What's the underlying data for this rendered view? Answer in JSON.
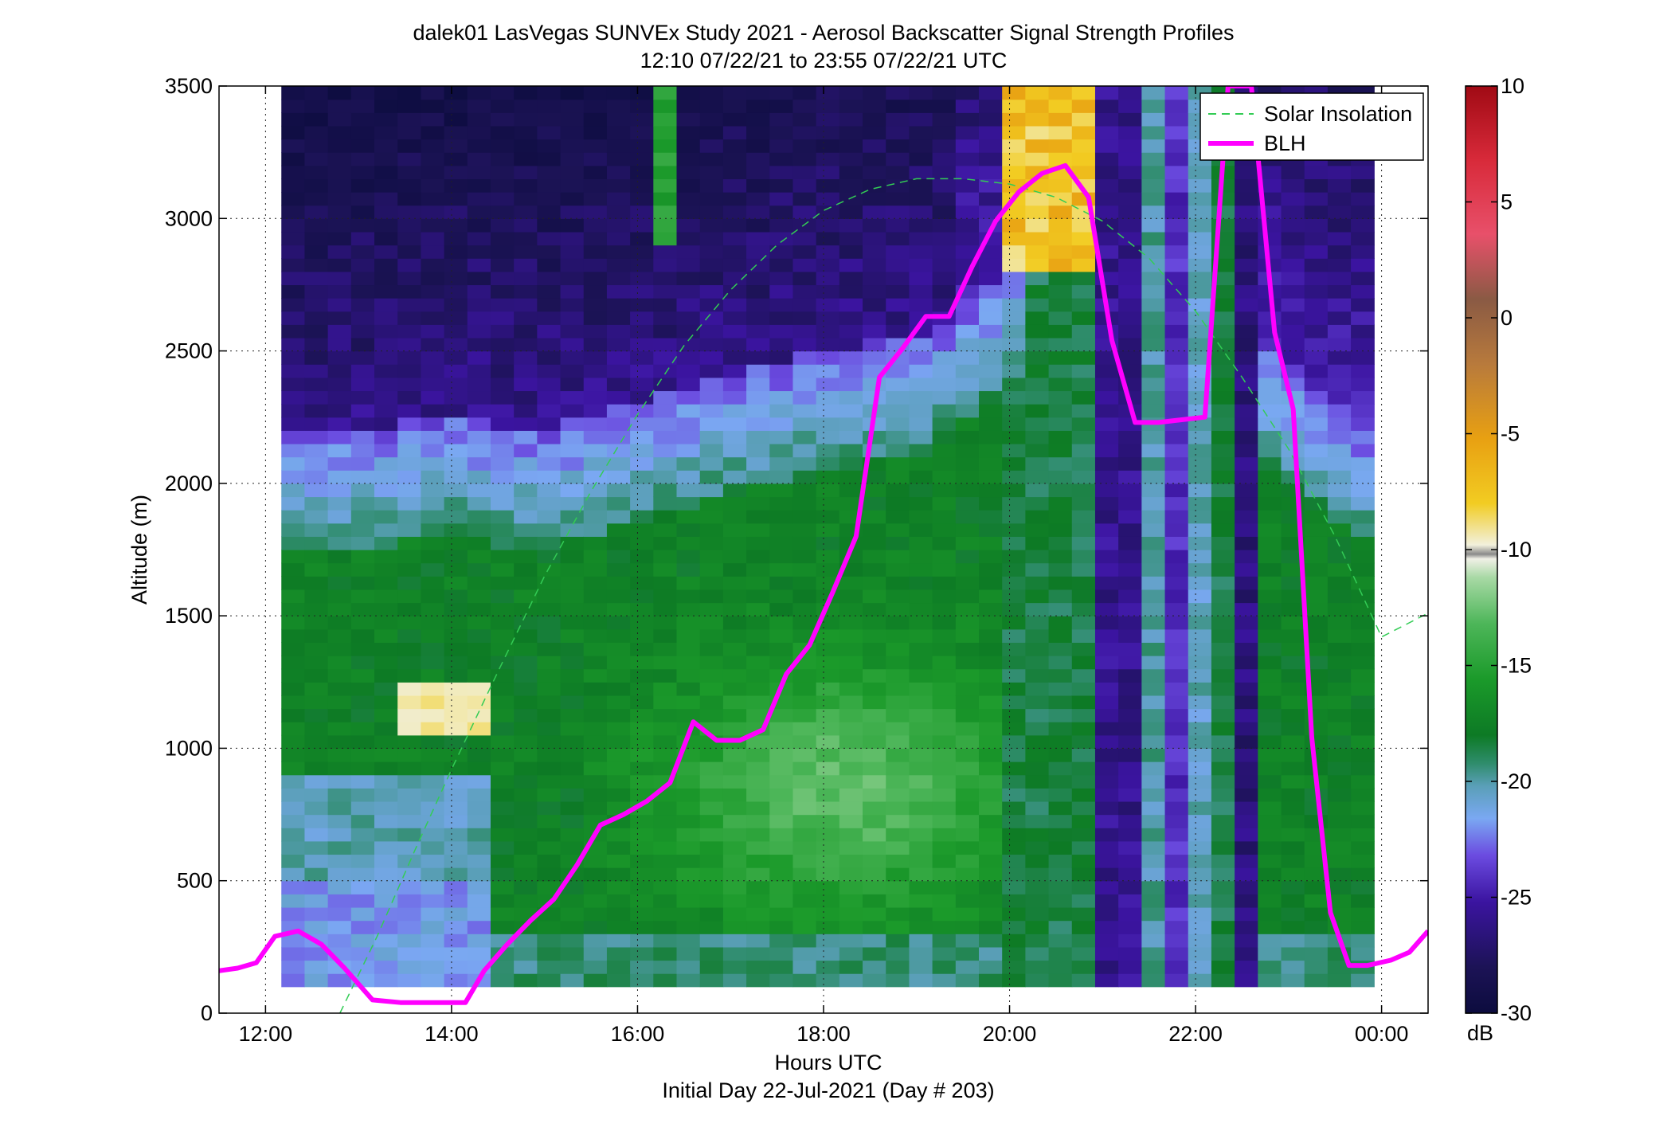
{
  "chart_data": {
    "type": "heatmap",
    "title": "dalek01 LasVegas SUNVEx Study 2021 - Aerosol Backscatter Signal Strength Profiles",
    "subtitle": "12:10 07/22/21 to 23:55 07/22/21  UTC",
    "xlabel": "Hours UTC",
    "xlabel2": "Initial Day 22-Jul-2021 (Day # 203)",
    "ylabel": "Altitude (m)",
    "xlim": [
      11.5,
      24.5
    ],
    "ylim": [
      0,
      3500
    ],
    "x_ticks": [
      12,
      14,
      16,
      18,
      20,
      22,
      24
    ],
    "x_tick_labels": [
      "12:00",
      "14:00",
      "16:00",
      "18:00",
      "20:00",
      "22:00",
      "00:00"
    ],
    "y_ticks": [
      0,
      500,
      1000,
      1500,
      2000,
      2500,
      3000,
      3500
    ],
    "y_tick_labels": [
      "0",
      "500",
      "1000",
      "1500",
      "2000",
      "2500",
      "3000",
      "3500"
    ],
    "grid": true,
    "legend_location": "top-right",
    "colorbar": {
      "label": "dB",
      "range": [
        -30,
        10
      ],
      "ticks": [
        10,
        5,
        0,
        -5,
        -10,
        -15,
        -20,
        -25,
        -30
      ],
      "tick_labels": [
        "10",
        "5",
        "0",
        "-5",
        "-10",
        "-15",
        "-20",
        "-25",
        "-30"
      ]
    },
    "heatmap": {
      "x_start": 12.17,
      "x_end": 23.92,
      "y_start": 100,
      "y_end": 3500,
      "description": "Backscatter signal strength (dB) vs time and altitude"
    },
    "series": [
      {
        "name": "Solar Insolation",
        "style": "dashed",
        "color": "#33cc55",
        "x": [
          12.8,
          13.2,
          13.6,
          14.0,
          14.5,
          15.0,
          15.5,
          16.0,
          16.5,
          17.0,
          17.5,
          18.0,
          18.5,
          19.0,
          19.5,
          20.0,
          20.5,
          21.0,
          21.5,
          22.0,
          22.5,
          23.0,
          23.5,
          24.0,
          24.5
        ],
        "y": [
          0,
          290,
          610,
          920,
          1290,
          1650,
          1970,
          2260,
          2520,
          2730,
          2900,
          3030,
          3110,
          3150,
          3150,
          3130,
          3080,
          2990,
          2850,
          2650,
          2400,
          2130,
          1800,
          1420,
          1510
        ]
      },
      {
        "name": "BLH",
        "style": "solid",
        "color": "#ff00ff",
        "x": [
          11.5,
          11.7,
          11.9,
          12.1,
          12.35,
          12.6,
          12.85,
          13.15,
          13.45,
          13.75,
          14.15,
          14.35,
          14.6,
          14.85,
          15.1,
          15.35,
          15.6,
          15.85,
          16.1,
          16.35,
          16.6,
          16.85,
          17.1,
          17.35,
          17.6,
          17.85,
          18.1,
          18.35,
          18.6,
          18.85,
          19.1,
          19.35,
          19.6,
          19.85,
          20.1,
          20.35,
          20.6,
          20.85,
          21.1,
          21.35,
          21.6,
          21.85,
          22.1,
          22.35,
          22.6,
          22.85,
          23.05,
          23.25,
          23.45,
          23.65,
          23.85,
          24.1,
          24.3,
          24.5
        ],
        "y": [
          160,
          170,
          190,
          290,
          310,
          260,
          170,
          50,
          40,
          40,
          40,
          160,
          260,
          350,
          430,
          560,
          710,
          750,
          800,
          870,
          1100,
          1030,
          1030,
          1070,
          1280,
          1390,
          1590,
          1800,
          2400,
          2510,
          2630,
          2630,
          2820,
          2990,
          3100,
          3170,
          3200,
          3080,
          2540,
          2230,
          2230,
          2240,
          2250,
          3500,
          3500,
          2570,
          2280,
          1040,
          380,
          180,
          180,
          200,
          230,
          310
        ]
      }
    ]
  }
}
